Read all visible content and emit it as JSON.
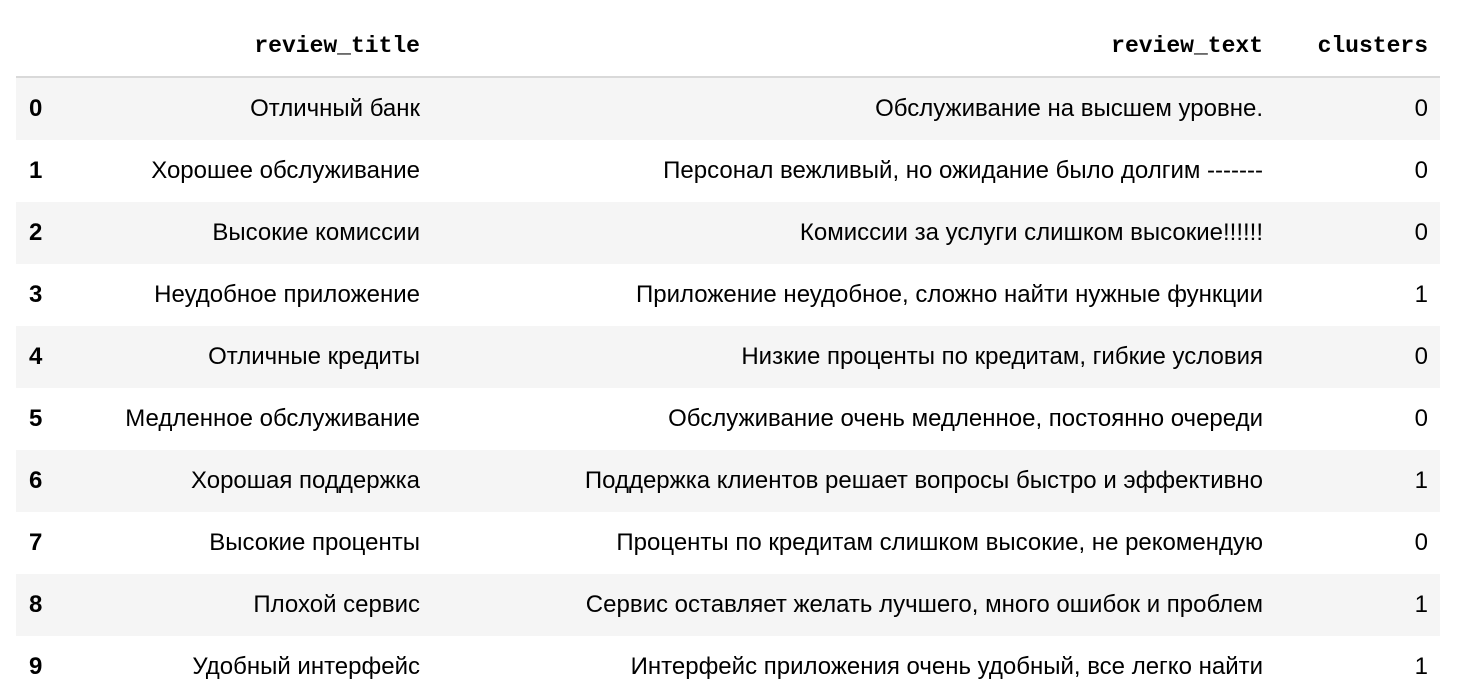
{
  "table": {
    "columns": [
      "",
      "review_title",
      "review_text",
      "clusters"
    ],
    "rows": [
      {
        "index": "0",
        "review_title": "Отличный банк",
        "review_text": "Обслуживание на высшем уровне.",
        "clusters": "0"
      },
      {
        "index": "1",
        "review_title": "Хорошее обслуживание",
        "review_text": "Персонал вежливый, но ожидание было долгим -------",
        "clusters": "0"
      },
      {
        "index": "2",
        "review_title": "Высокие комиссии",
        "review_text": "Комиссии за услуги слишком высокие!!!!!!",
        "clusters": "0"
      },
      {
        "index": "3",
        "review_title": "Неудобное приложение",
        "review_text": "Приложение неудобное, сложно найти нужные функции",
        "clusters": "1"
      },
      {
        "index": "4",
        "review_title": "Отличные кредиты",
        "review_text": "Низкие проценты по кредитам, гибкие условия",
        "clusters": "0"
      },
      {
        "index": "5",
        "review_title": "Медленное обслуживание",
        "review_text": "Обслуживание очень медленное, постоянно очереди",
        "clusters": "0"
      },
      {
        "index": "6",
        "review_title": "Хорошая поддержка",
        "review_text": "Поддержка клиентов решает вопросы быстро и эффективно",
        "clusters": "1"
      },
      {
        "index": "7",
        "review_title": "Высокие проценты",
        "review_text": "Проценты по кредитам слишком высокие, не рекомендую",
        "clusters": "0"
      },
      {
        "index": "8",
        "review_title": "Плохой сервис",
        "review_text": "Сервис оставляет желать лучшего, много ошибок и проблем",
        "clusters": "1"
      },
      {
        "index": "9",
        "review_title": "Удобный интерфейс",
        "review_text": "Интерфейс приложения очень удобный, все легко найти",
        "clusters": "1"
      }
    ]
  }
}
